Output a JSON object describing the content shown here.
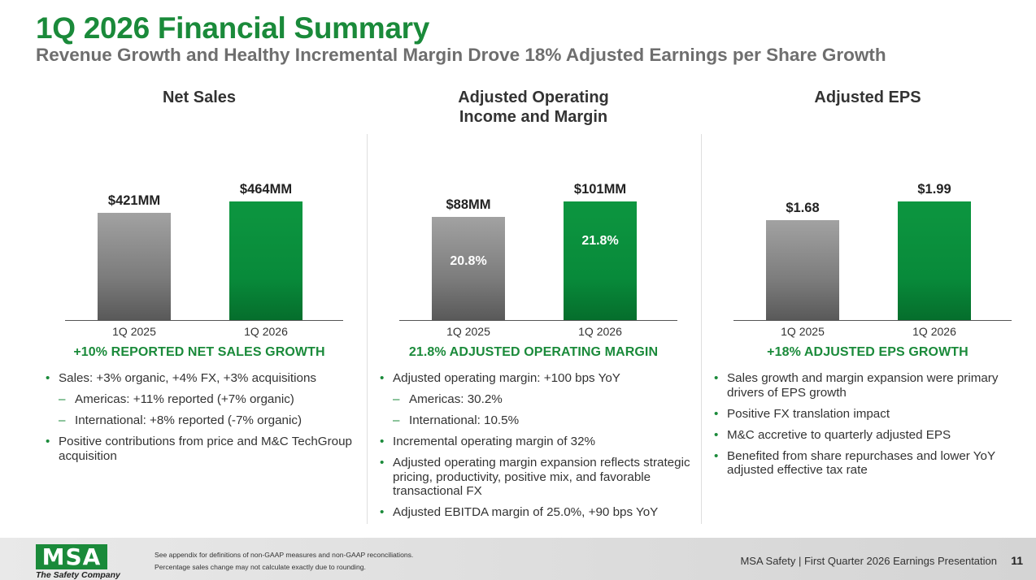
{
  "header": {
    "title": "1Q 2026 Financial Summary",
    "subtitle": "Revenue Growth and Healthy Incremental Margin Drove 18% Adjusted Earnings per Share Growth"
  },
  "panels": [
    {
      "title_lines": [
        "Net Sales",
        ""
      ],
      "growth": "+10% REPORTED NET SALES GROWTH",
      "bullets": [
        {
          "type": "main",
          "text": "Sales: +3% organic, +4% FX, +3% acquisitions"
        },
        {
          "type": "sub",
          "text": "Americas: +11% reported (+7% organic)"
        },
        {
          "type": "sub",
          "text": "International: +8% reported (-7% organic)"
        },
        {
          "type": "main",
          "text": "Positive contributions from price and M&C TechGroup acquisition"
        }
      ]
    },
    {
      "title_lines": [
        "Adjusted Operating",
        "Income and Margin"
      ],
      "growth": "21.8% ADJUSTED OPERATING MARGIN",
      "bullets": [
        {
          "type": "main",
          "text": "Adjusted operating margin: +100 bps YoY"
        },
        {
          "type": "sub",
          "text": "Americas: 30.2%"
        },
        {
          "type": "sub",
          "text": "International: 10.5%"
        },
        {
          "type": "main",
          "text": "Incremental operating margin of 32%"
        },
        {
          "type": "main",
          "text": "Adjusted operating margin expansion reflects strategic pricing, productivity, positive mix, and favorable transactional FX"
        },
        {
          "type": "main",
          "text": "Adjusted EBITDA margin of 25.0%, +90 bps YoY"
        }
      ]
    },
    {
      "title_lines": [
        "Adjusted EPS",
        ""
      ],
      "growth": "+18% ADJUSTED EPS GROWTH",
      "bullets": [
        {
          "type": "main",
          "text": "Sales growth and margin expansion were primary drivers of EPS growth"
        },
        {
          "type": "main",
          "text": "Positive FX translation impact"
        },
        {
          "type": "main",
          "text": "M&C accretive to quarterly adjusted EPS"
        },
        {
          "type": "main",
          "text": "Benefited from share repurchases and lower YoY adjusted effective tax rate"
        }
      ]
    }
  ],
  "chart_data": [
    {
      "type": "bar",
      "categories": [
        "1Q 2025",
        "1Q 2026"
      ],
      "values": [
        421,
        464
      ],
      "value_labels": [
        "$421MM",
        "$464MM"
      ],
      "title": "Net Sales",
      "ylim": [
        0,
        464
      ],
      "colors": [
        "#8a8a8a",
        "#0b8f3c"
      ]
    },
    {
      "type": "bar",
      "categories": [
        "1Q 2025",
        "1Q 2026"
      ],
      "values": [
        88,
        101
      ],
      "value_labels": [
        "$88MM",
        "$101MM"
      ],
      "inner_labels": [
        "20.8%",
        "21.8%"
      ],
      "margin_values": [
        20.8,
        21.8
      ],
      "title": "Adjusted Operating Income and Margin",
      "ylim": [
        0,
        101
      ],
      "colors": [
        "#8a8a8a",
        "#0b8f3c"
      ]
    },
    {
      "type": "bar",
      "categories": [
        "1Q 2025",
        "1Q 2026"
      ],
      "values": [
        1.68,
        1.99
      ],
      "value_labels": [
        "$1.68",
        "$1.99"
      ],
      "title": "Adjusted EPS",
      "ylim": [
        0,
        1.99
      ],
      "colors": [
        "#8a8a8a",
        "#0b8f3c"
      ]
    }
  ],
  "footer": {
    "logo": "MSA",
    "tagline": "The Safety Company",
    "footnote1": "See appendix for definitions of non-GAAP measures and non-GAAP reconciliations.",
    "footnote2": "Percentage sales change may not calculate exactly due to rounding.",
    "presentation": "MSA Safety | First Quarter 2026 Earnings Presentation",
    "page_number": "11"
  }
}
